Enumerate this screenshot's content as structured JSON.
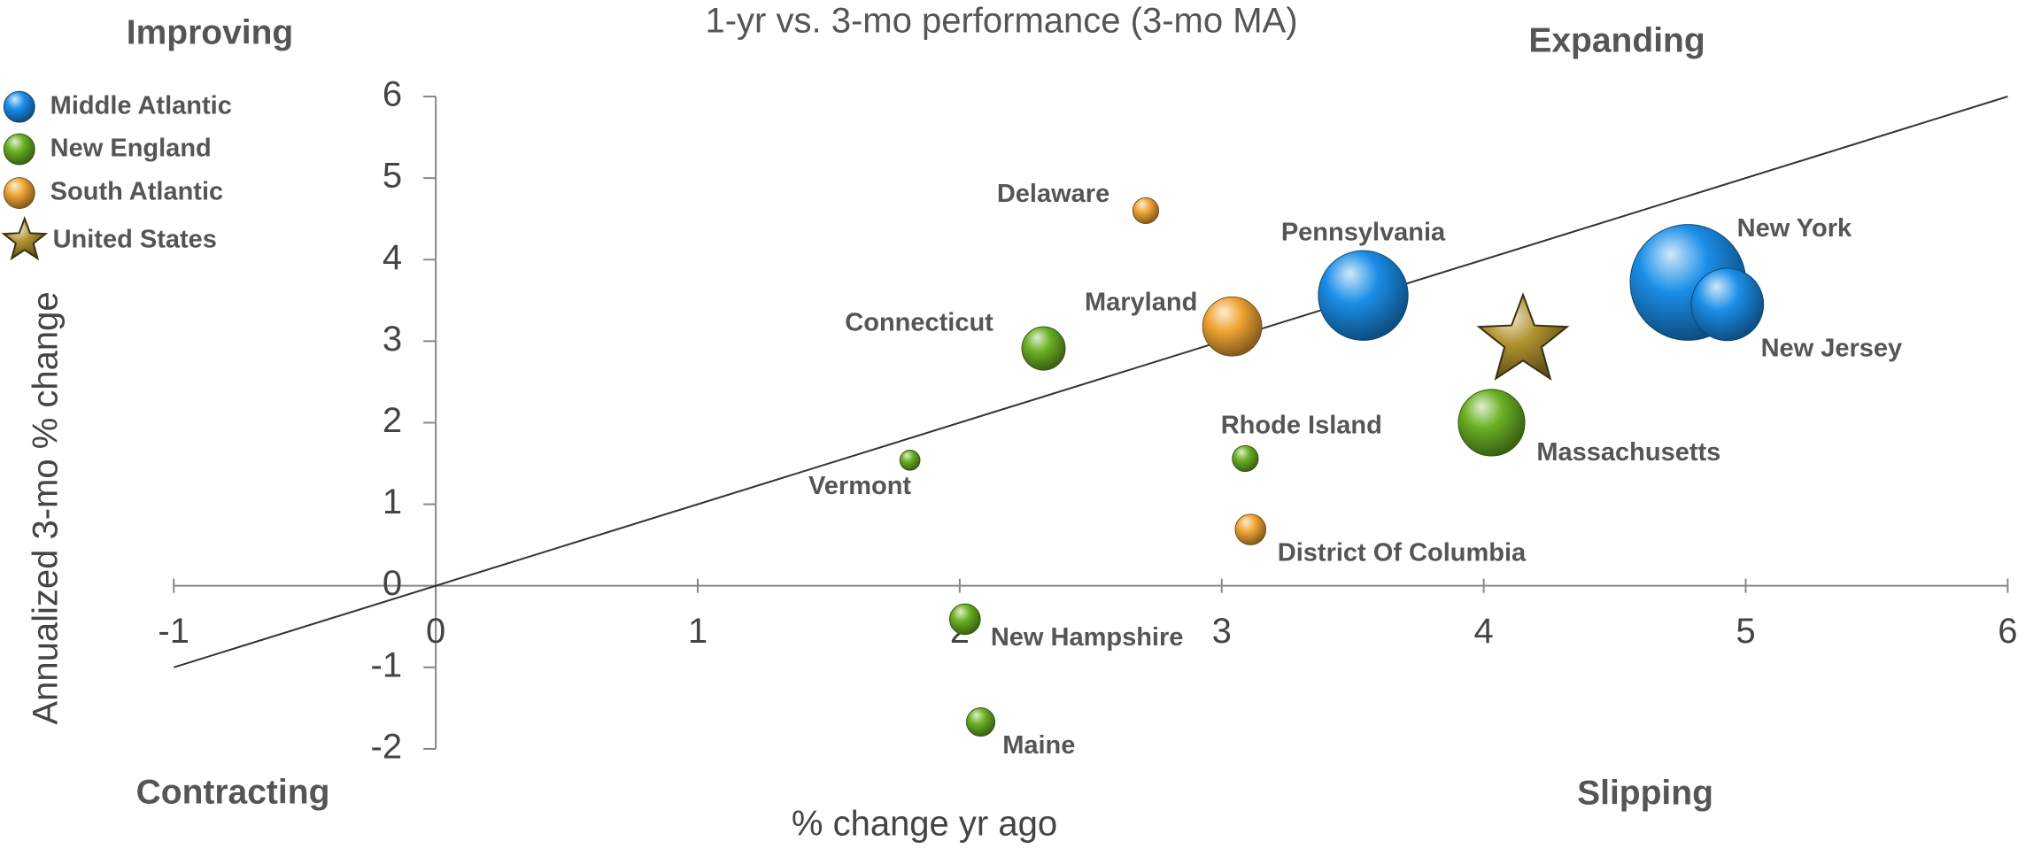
{
  "chart_data": {
    "type": "bubble",
    "title": "1-yr vs. 3-mo performance (3-mo MA)",
    "x_label": "% change  yr ago",
    "y_label": "Annualized  3-mo % change",
    "quadrant_labels": {
      "top_left": "Improving",
      "top_right": "Expanding",
      "bottom_left": "Contracting",
      "bottom_right": "Slipping"
    },
    "xlim": [
      -1,
      6
    ],
    "xticks": [
      -1,
      0,
      1,
      2,
      3,
      4,
      5,
      6
    ],
    "ylim": [
      -2,
      6
    ],
    "yticks": [
      -2,
      -1,
      0,
      1,
      2,
      3,
      4,
      5,
      6
    ],
    "legend": "top-left",
    "trend_line": {
      "x": [
        -1,
        6
      ],
      "y": [
        -1,
        6
      ]
    },
    "series": [
      {
        "name": "Middle Atlantic",
        "color": "#1a8ee8",
        "marker": "circle",
        "labels": [
          "New York",
          "New Jersey",
          "Pennsylvania"
        ],
        "x": [
          4.78,
          4.93,
          3.54
        ],
        "values": [
          3.72,
          3.45,
          3.56
        ],
        "sizes": [
          100,
          39,
          60
        ]
      },
      {
        "name": "New England",
        "color": "#69b023",
        "marker": "circle",
        "labels": [
          "Connecticut",
          "Massachusetts",
          "Rhode Island",
          "Vermont",
          "New Hampshire",
          "Maine"
        ],
        "x": [
          2.32,
          4.03,
          3.09,
          1.81,
          2.02,
          2.08
        ],
        "values": [
          2.91,
          2.0,
          1.56,
          1.54,
          -0.41,
          -1.67
        ],
        "sizes": [
          14,
          33,
          5,
          3,
          7,
          6
        ]
      },
      {
        "name": "South Atlantic",
        "color": "#f0a534",
        "marker": "circle",
        "labels": [
          "Delaware",
          "Maryland",
          "District Of Columbia"
        ],
        "x": [
          2.71,
          3.04,
          3.11
        ],
        "values": [
          4.6,
          3.18,
          0.69
        ],
        "sizes": [
          5,
          26,
          7
        ]
      },
      {
        "name": "United States",
        "color": "#b0922e",
        "marker": "star",
        "x": [
          4.15
        ],
        "values": [
          3.0
        ]
      }
    ]
  }
}
